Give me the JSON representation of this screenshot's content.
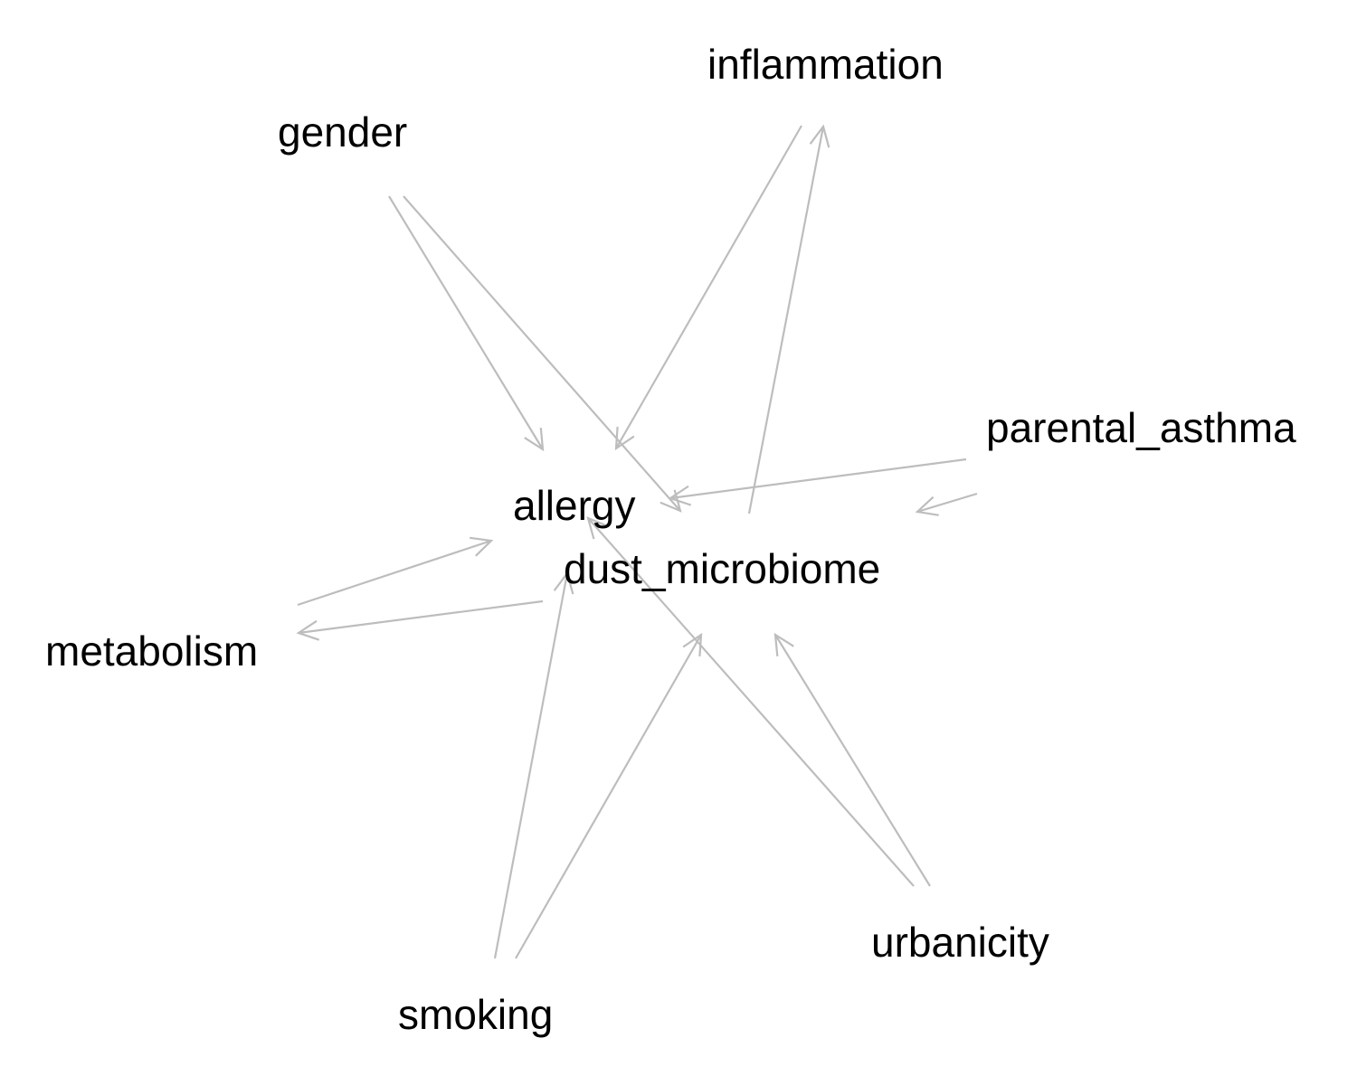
{
  "graph": {
    "edge_color": "#bdbdbd",
    "label_color": "#000000",
    "nodes": [
      {
        "id": "inflammation",
        "label": "inflammation"
      },
      {
        "id": "gender",
        "label": "gender"
      },
      {
        "id": "parental_asthma",
        "label": "parental_asthma"
      },
      {
        "id": "allergy",
        "label": "allergy"
      },
      {
        "id": "dust_microbiome",
        "label": "dust_microbiome"
      },
      {
        "id": "metabolism",
        "label": "metabolism"
      },
      {
        "id": "urbanicity",
        "label": "urbanicity"
      },
      {
        "id": "smoking",
        "label": "smoking"
      }
    ],
    "edges": [
      {
        "from": "gender",
        "to": "allergy"
      },
      {
        "from": "gender",
        "to": "dust_microbiome"
      },
      {
        "from": "inflammation",
        "to": "allergy"
      },
      {
        "from": "dust_microbiome",
        "to": "inflammation"
      },
      {
        "from": "parental_asthma",
        "to": "allergy"
      },
      {
        "from": "parental_asthma",
        "to": "dust_microbiome"
      },
      {
        "from": "metabolism",
        "to": "allergy"
      },
      {
        "from": "dust_microbiome",
        "to": "metabolism"
      },
      {
        "from": "smoking",
        "to": "allergy"
      },
      {
        "from": "smoking",
        "to": "dust_microbiome"
      },
      {
        "from": "urbanicity",
        "to": "allergy"
      },
      {
        "from": "urbanicity",
        "to": "dust_microbiome"
      }
    ]
  }
}
